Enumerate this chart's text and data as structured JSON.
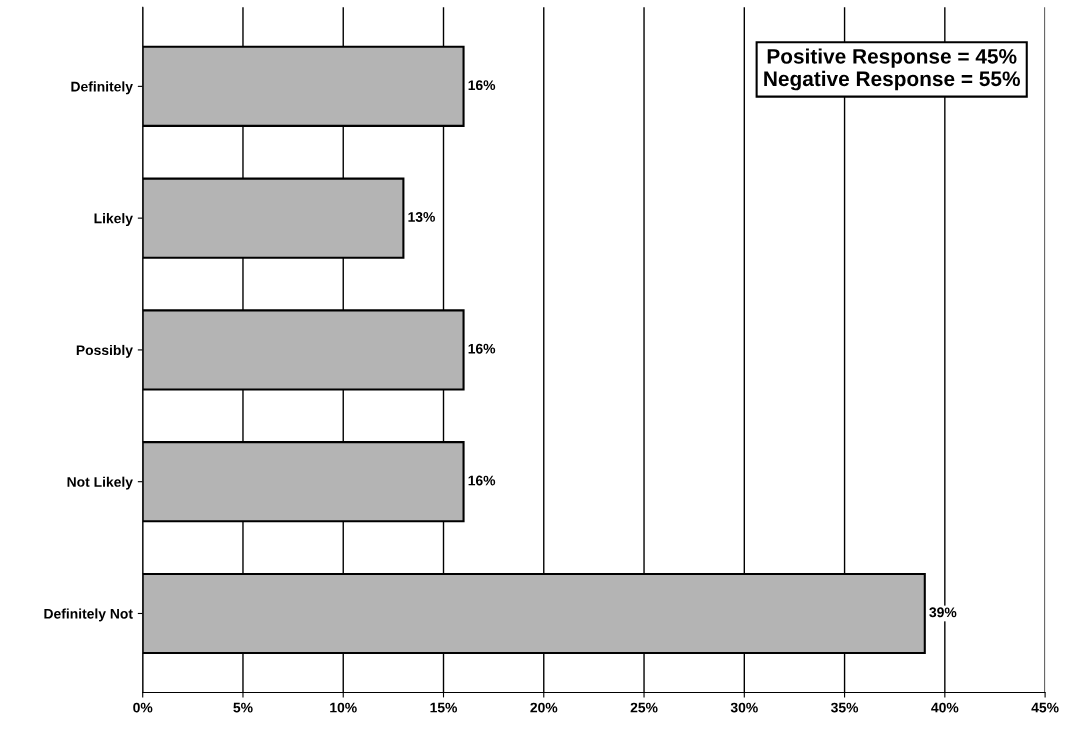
{
  "chart_data": {
    "type": "bar",
    "orientation": "horizontal",
    "categories": [
      "Definitely",
      "Likely",
      "Possibly",
      "Not Likely",
      "Definitely Not"
    ],
    "values": [
      16,
      13,
      16,
      16,
      39
    ],
    "value_labels": [
      "16%",
      "13%",
      "16%",
      "16%",
      "39%"
    ],
    "color": "#b4b4b4",
    "xlim": [
      0,
      45
    ],
    "xticks": [
      {
        "value": 0,
        "label": "0%"
      },
      {
        "value": 5,
        "label": "5%"
      },
      {
        "value": 10,
        "label": "10%"
      },
      {
        "value": 15,
        "label": "15%"
      },
      {
        "value": 20,
        "label": "20%"
      },
      {
        "value": 25,
        "label": "25%"
      },
      {
        "value": 30,
        "label": "30%"
      },
      {
        "value": 35,
        "label": "35%"
      },
      {
        "value": 40,
        "label": "40%"
      },
      {
        "value": 45,
        "label": "45%"
      }
    ],
    "grid": "x",
    "annotations": [
      "Positive Response = 45%\nNegative Response = 55%"
    ]
  }
}
